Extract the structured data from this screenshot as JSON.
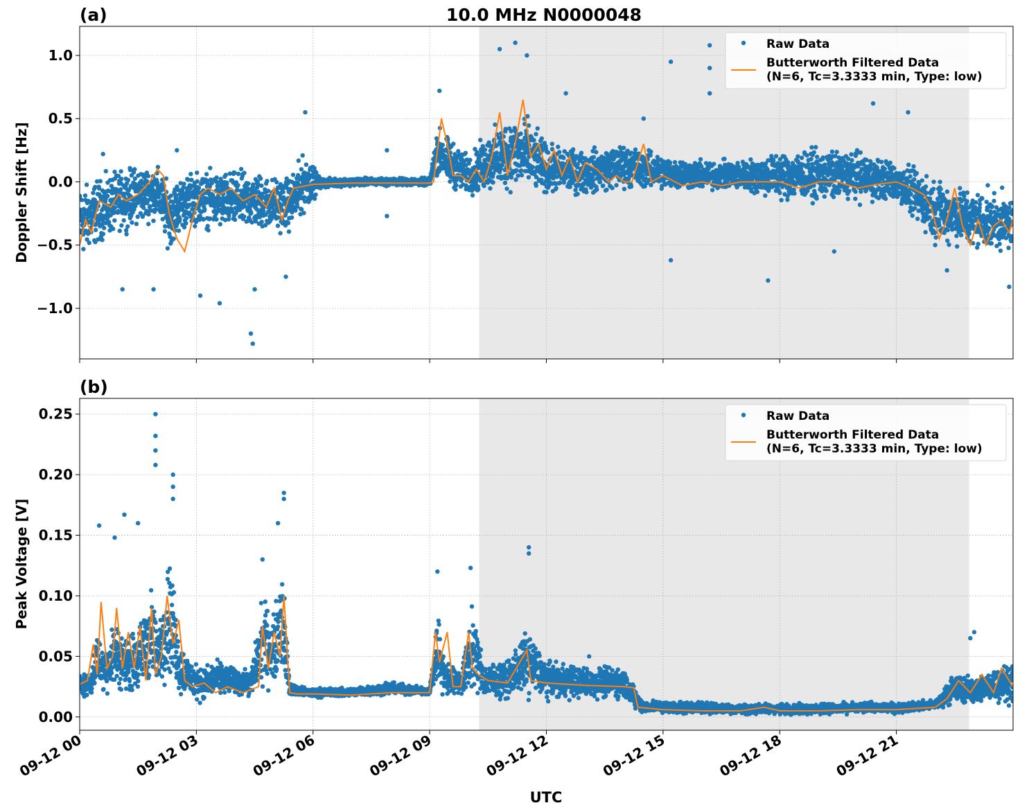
{
  "title": "10.0 MHz N0000048",
  "xlabel": "UTC",
  "x_tick_labels": [
    "09-12 00",
    "09-12 03",
    "09-12 06",
    "09-12 09",
    "09-12 12",
    "09-12 15",
    "09-12 18",
    "09-12 21"
  ],
  "chart_data": [
    {
      "type": "scatter",
      "panel_label": "(a)",
      "ylabel": "Doppler Shift [Hz]",
      "x_unit": "hours after 09-12 00:00 UTC",
      "xlim": [
        0,
        24
      ],
      "ylim": [
        -1.4,
        1.23
      ],
      "y_ticks": [
        1.0,
        0.5,
        0.0,
        -0.5,
        -1.0
      ],
      "y_tick_labels": [
        "1.0",
        "0.5",
        "0.0",
        "−0.5",
        "−1.0"
      ],
      "grid": true,
      "legend_position": "top-right",
      "shaded_x_range": [
        10.27,
        22.87
      ],
      "series": [
        {
          "name": "Raw Data",
          "style": "points",
          "color": "#1f77b4",
          "envelope": {
            "x": [
              0,
              0.5,
              1,
              1.5,
              2,
              2.3,
              2.6,
              3,
              3.5,
              4,
              4.5,
              5,
              5.4,
              5.8,
              6.2,
              7,
              8,
              9,
              9.2,
              9.5,
              10,
              10.5,
              11,
              11.5,
              12,
              13,
              14,
              15,
              16,
              17,
              18,
              19,
              20,
              21,
              22,
              22.5,
              23,
              24
            ],
            "low": [
              -0.7,
              -0.55,
              -0.45,
              -0.4,
              -0.35,
              -0.6,
              -0.45,
              -0.4,
              -0.45,
              -0.45,
              -0.45,
              -0.45,
              -0.45,
              -0.3,
              -0.06,
              -0.04,
              -0.04,
              -0.04,
              0.0,
              -0.1,
              -0.15,
              -0.15,
              -0.15,
              -0.15,
              -0.15,
              -0.15,
              -0.1,
              -0.1,
              -0.1,
              -0.1,
              -0.2,
              -0.2,
              -0.2,
              -0.2,
              -0.55,
              -0.55,
              -0.6,
              -0.6
            ],
            "high": [
              0.05,
              0.1,
              0.15,
              0.2,
              0.18,
              0.05,
              0.1,
              0.15,
              0.15,
              0.15,
              0.15,
              0.1,
              0.1,
              0.3,
              0.04,
              0.04,
              0.04,
              0.04,
              0.5,
              0.4,
              0.25,
              0.45,
              0.6,
              0.6,
              0.35,
              0.3,
              0.35,
              0.25,
              0.2,
              0.2,
              0.3,
              0.3,
              0.3,
              0.2,
              0.1,
              0.05,
              0.0,
              -0.05
            ]
          },
          "outliers": [
            [
              0.6,
              0.22
            ],
            [
              1.1,
              -0.85
            ],
            [
              1.9,
              -0.85
            ],
            [
              2.5,
              0.25
            ],
            [
              3.1,
              -0.9
            ],
            [
              3.6,
              -0.96
            ],
            [
              4.4,
              -1.2
            ],
            [
              4.45,
              -1.28
            ],
            [
              4.5,
              -0.85
            ],
            [
              5.3,
              -0.75
            ],
            [
              5.8,
              0.55
            ],
            [
              7.9,
              0.25
            ],
            [
              7.9,
              -0.27
            ],
            [
              9.25,
              0.72
            ],
            [
              10.8,
              1.05
            ],
            [
              11.2,
              1.1
            ],
            [
              11.5,
              1.0
            ],
            [
              12.5,
              0.7
            ],
            [
              14.5,
              0.5
            ],
            [
              15.2,
              0.95
            ],
            [
              15.2,
              -0.62
            ],
            [
              16.2,
              1.08
            ],
            [
              16.2,
              0.9
            ],
            [
              16.2,
              0.7
            ],
            [
              17.7,
              -0.78
            ],
            [
              19.4,
              -0.55
            ],
            [
              20.4,
              0.62
            ],
            [
              21.3,
              0.55
            ],
            [
              22.3,
              -0.7
            ],
            [
              23.9,
              -0.83
            ]
          ]
        },
        {
          "name": "Butterworth Filtered Data\n(N=6, Tc=3.3333 min, Type: low)",
          "style": "line",
          "color": "#ff7f0e",
          "x": [
            0,
            0.15,
            0.3,
            0.5,
            0.8,
            1.0,
            1.2,
            1.5,
            1.8,
            2.0,
            2.15,
            2.3,
            2.5,
            2.7,
            2.9,
            3.1,
            3.3,
            3.6,
            3.9,
            4.2,
            4.5,
            4.8,
            5.0,
            5.2,
            5.35,
            5.5,
            6.0,
            7.0,
            8.0,
            9.0,
            9.1,
            9.2,
            9.3,
            9.45,
            9.6,
            9.8,
            10.0,
            10.2,
            10.4,
            10.6,
            10.8,
            11.0,
            11.2,
            11.4,
            11.6,
            11.8,
            12.0,
            12.2,
            12.4,
            12.6,
            12.8,
            13.0,
            13.3,
            13.6,
            13.8,
            14.0,
            14.2,
            14.5,
            14.7,
            15.0,
            15.5,
            16.0,
            16.5,
            17.0,
            17.5,
            18.0,
            18.5,
            19.0,
            19.5,
            20.0,
            20.5,
            21.0,
            21.4,
            21.7,
            21.9,
            22.1,
            22.3,
            22.5,
            22.7,
            22.9,
            23.1,
            23.3,
            23.5,
            23.7,
            23.9,
            24.0
          ],
          "y": [
            -0.5,
            -0.3,
            -0.4,
            -0.15,
            -0.2,
            -0.1,
            -0.15,
            -0.1,
            0.0,
            0.1,
            0.05,
            -0.25,
            -0.45,
            -0.55,
            -0.3,
            -0.1,
            -0.05,
            -0.1,
            -0.05,
            -0.15,
            -0.1,
            -0.2,
            -0.05,
            -0.3,
            -0.15,
            -0.05,
            -0.02,
            -0.01,
            -0.01,
            -0.01,
            0.0,
            0.25,
            0.5,
            0.3,
            0.05,
            0.05,
            0.0,
            0.1,
            0.0,
            0.2,
            0.55,
            0.05,
            0.3,
            0.65,
            0.2,
            0.3,
            0.1,
            0.25,
            0.05,
            0.2,
            0.0,
            0.15,
            0.1,
            0.0,
            0.05,
            0.0,
            0.0,
            0.3,
            0.0,
            0.05,
            -0.03,
            0.0,
            -0.03,
            0.0,
            0.0,
            0.0,
            -0.05,
            0.0,
            0.0,
            -0.05,
            -0.02,
            0.0,
            -0.05,
            -0.1,
            -0.2,
            -0.45,
            -0.3,
            -0.05,
            -0.35,
            -0.5,
            -0.3,
            -0.5,
            -0.35,
            -0.3,
            -0.4,
            -0.3
          ]
        }
      ]
    },
    {
      "type": "scatter",
      "panel_label": "(b)",
      "ylabel": "Peak Voltage [V]",
      "x_unit": "hours after 09-12 00:00 UTC",
      "xlim": [
        0,
        24
      ],
      "ylim": [
        -0.011,
        0.263
      ],
      "y_ticks": [
        0.25,
        0.2,
        0.15,
        0.1,
        0.05,
        0.0
      ],
      "y_tick_labels": [
        "0.25",
        "0.20",
        "0.15",
        "0.10",
        "0.05",
        "0.00"
      ],
      "grid": true,
      "legend_position": "top-right",
      "shaded_x_range": [
        10.27,
        22.87
      ],
      "series": [
        {
          "name": "Raw Data",
          "style": "points",
          "color": "#1f77b4",
          "envelope": {
            "x": [
              0,
              0.3,
              0.45,
              0.6,
              0.9,
              1.2,
              1.5,
              1.85,
              2.0,
              2.3,
              2.6,
              2.9,
              3.2,
              3.6,
              4.0,
              4.4,
              4.7,
              5.0,
              5.2,
              5.4,
              5.8,
              7.0,
              8.0,
              9.0,
              9.2,
              9.4,
              9.8,
              10.1,
              10.4,
              11.0,
              11.5,
              12.0,
              13.0,
              14.0,
              14.3,
              14.5,
              15.0,
              16.0,
              17.0,
              18.0,
              19.0,
              20.0,
              21.0,
              22.0,
              22.5,
              23.0,
              23.5,
              24.0
            ],
            "low": [
              0.015,
              0.015,
              0.02,
              0.015,
              0.015,
              0.015,
              0.015,
              0.015,
              0.02,
              0.02,
              0.01,
              0.01,
              0.01,
              0.015,
              0.015,
              0.015,
              0.015,
              0.02,
              0.02,
              0.015,
              0.015,
              0.016,
              0.017,
              0.017,
              0.015,
              0.015,
              0.015,
              0.015,
              0.012,
              0.012,
              0.012,
              0.012,
              0.012,
              0.012,
              0.003,
              0.002,
              0.002,
              0.001,
              0.001,
              0.001,
              0.001,
              0.002,
              0.002,
              0.005,
              0.008,
              0.008,
              0.008,
              0.008
            ],
            "high": [
              0.04,
              0.04,
              0.08,
              0.06,
              0.09,
              0.07,
              0.08,
              0.12,
              0.08,
              0.15,
              0.07,
              0.05,
              0.045,
              0.05,
              0.045,
              0.04,
              0.11,
              0.09,
              0.15,
              0.03,
              0.025,
              0.025,
              0.03,
              0.025,
              0.1,
              0.05,
              0.04,
              0.1,
              0.05,
              0.05,
              0.08,
              0.05,
              0.045,
              0.045,
              0.025,
              0.015,
              0.015,
              0.014,
              0.012,
              0.012,
              0.012,
              0.013,
              0.013,
              0.015,
              0.04,
              0.035,
              0.045,
              0.05
            ]
          },
          "outliers": [
            [
              0.5,
              0.158
            ],
            [
              0.9,
              0.148
            ],
            [
              1.15,
              0.167
            ],
            [
              1.5,
              0.16
            ],
            [
              1.95,
              0.25
            ],
            [
              1.95,
              0.232
            ],
            [
              1.95,
              0.22
            ],
            [
              1.95,
              0.208
            ],
            [
              2.4,
              0.2
            ],
            [
              2.4,
              0.19
            ],
            [
              2.4,
              0.18
            ],
            [
              4.7,
              0.13
            ],
            [
              5.25,
              0.185
            ],
            [
              5.25,
              0.18
            ],
            [
              5.1,
              0.16
            ],
            [
              9.2,
              0.12
            ],
            [
              10.05,
              0.123
            ],
            [
              11.55,
              0.14
            ],
            [
              11.55,
              0.135
            ],
            [
              13.1,
              0.05
            ],
            [
              23.0,
              0.07
            ],
            [
              22.9,
              0.065
            ]
          ]
        },
        {
          "name": "Butterworth Filtered Data\n(N=6, Tc=3.3333 min, Type: low)",
          "style": "line",
          "color": "#ff7f0e",
          "x": [
            0,
            0.2,
            0.35,
            0.45,
            0.55,
            0.7,
            0.85,
            0.95,
            1.1,
            1.25,
            1.4,
            1.55,
            1.7,
            1.85,
            1.95,
            2.1,
            2.25,
            2.4,
            2.55,
            2.7,
            2.9,
            3.2,
            3.5,
            3.8,
            4.2,
            4.6,
            4.7,
            4.85,
            5.0,
            5.15,
            5.25,
            5.4,
            5.6,
            6.0,
            7.0,
            8.0,
            9.0,
            9.15,
            9.25,
            9.45,
            9.6,
            9.8,
            10.0,
            10.1,
            10.25,
            10.5,
            11.0,
            11.5,
            11.6,
            12.0,
            13.0,
            14.0,
            14.25,
            14.35,
            15.0,
            16.0,
            17.0,
            17.6,
            18.0,
            19.0,
            20.0,
            21.0,
            22.0,
            22.3,
            22.6,
            22.9,
            23.2,
            23.5,
            23.7,
            24.0
          ],
          "y": [
            0.027,
            0.03,
            0.06,
            0.035,
            0.095,
            0.04,
            0.05,
            0.09,
            0.04,
            0.07,
            0.04,
            0.075,
            0.03,
            0.09,
            0.035,
            0.05,
            0.1,
            0.06,
            0.08,
            0.03,
            0.025,
            0.028,
            0.02,
            0.025,
            0.02,
            0.025,
            0.075,
            0.04,
            0.07,
            0.05,
            0.1,
            0.02,
            0.019,
            0.019,
            0.018,
            0.02,
            0.02,
            0.07,
            0.045,
            0.07,
            0.025,
            0.025,
            0.07,
            0.04,
            0.035,
            0.03,
            0.028,
            0.055,
            0.03,
            0.028,
            0.026,
            0.025,
            0.024,
            0.008,
            0.006,
            0.005,
            0.005,
            0.008,
            0.005,
            0.005,
            0.006,
            0.006,
            0.008,
            0.015,
            0.03,
            0.02,
            0.035,
            0.02,
            0.04,
            0.025
          ]
        }
      ]
    }
  ]
}
